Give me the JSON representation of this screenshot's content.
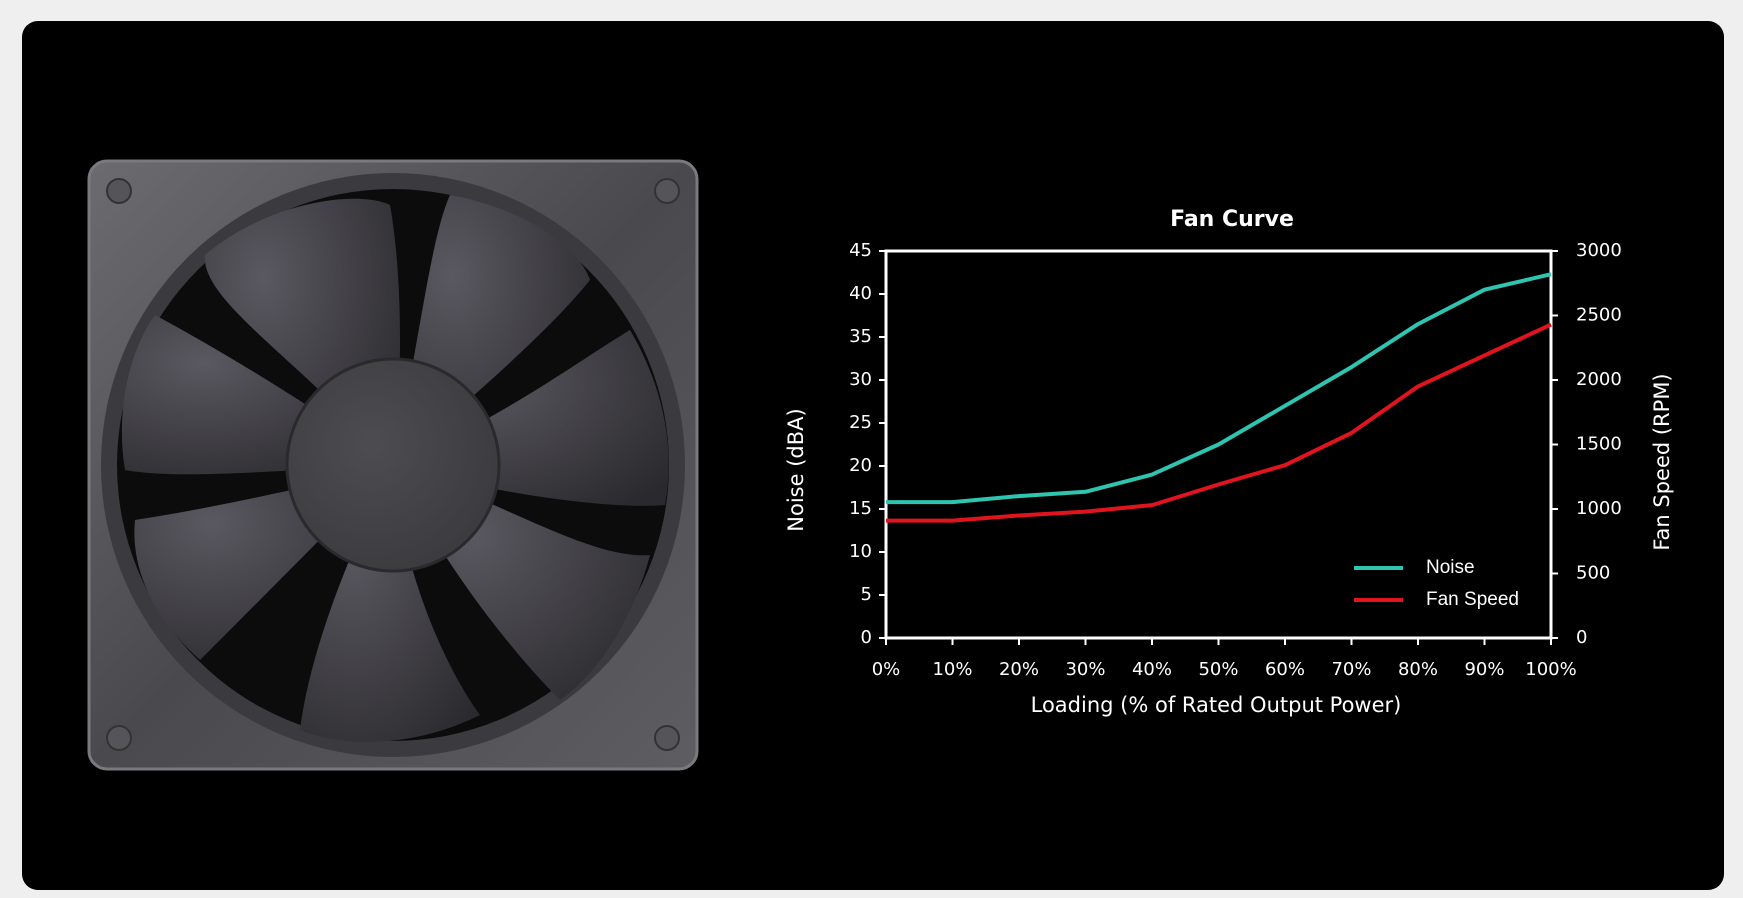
{
  "chart_data": {
    "type": "line",
    "title": "Fan Curve",
    "x_label": "Loading (% of Rated Output Power)",
    "y_label": "Noise (dBA)",
    "y2_label": "Fan Speed (RPM)",
    "categories": [
      "0%",
      "10%",
      "20%",
      "30%",
      "40%",
      "50%",
      "60%",
      "70%",
      "80%",
      "90%",
      "100%"
    ],
    "series": [
      {
        "name": "Noise",
        "color": "#2ec4b0",
        "values": [
          15.8,
          15.8,
          16.5,
          17,
          19,
          22.5,
          27,
          31.5,
          36.5,
          40.5,
          42.3
        ]
      },
      {
        "name": "Fan Speed",
        "color": "#e0141e",
        "axis": "y2",
        "values": [
          910,
          910,
          950,
          980,
          1030,
          1190,
          1340,
          1590,
          1950,
          2190,
          2430
        ]
      }
    ],
    "ylim": [
      0,
      45
    ],
    "yticks": [
      0,
      5,
      10,
      15,
      20,
      25,
      30,
      35,
      40,
      45
    ],
    "y2lim": [
      0,
      3000
    ],
    "y2ticks": [
      0,
      500,
      1000,
      1500,
      2000,
      2500,
      3000
    ],
    "legend": "lower right",
    "grid": false
  }
}
